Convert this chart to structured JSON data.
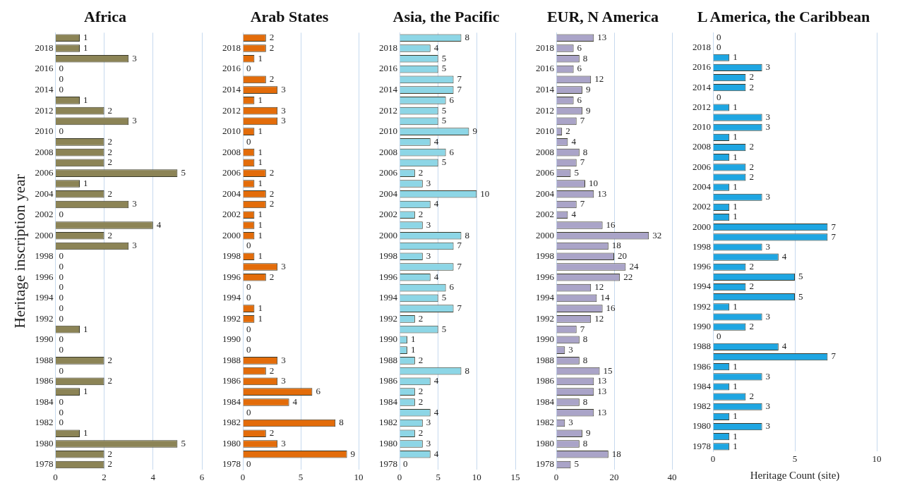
{
  "chart_data": [
    {
      "type": "bar",
      "orientation": "horizontal",
      "title": "Africa",
      "ylabel": "Heritage inscription year",
      "categories": [
        null,
        "2018",
        null,
        "2016",
        null,
        "2014",
        null,
        "2012",
        null,
        "2010",
        null,
        "2008",
        null,
        "2006",
        null,
        "2004",
        null,
        "2002",
        null,
        "2000",
        null,
        "1998",
        null,
        "1996",
        null,
        "1994",
        null,
        "1992",
        null,
        "1990",
        null,
        "1988",
        null,
        "1986",
        null,
        "1984",
        null,
        "1982",
        null,
        "1980",
        null,
        "1978"
      ],
      "values": [
        1,
        1,
        3,
        0,
        0,
        0,
        1,
        2,
        3,
        0,
        2,
        2,
        2,
        5,
        1,
        2,
        3,
        0,
        4,
        2,
        3,
        0,
        0,
        0,
        0,
        0,
        0,
        0,
        1,
        0,
        0,
        2,
        0,
        2,
        1,
        0,
        0,
        0,
        1,
        5,
        2,
        2
      ],
      "color": "#8c8456",
      "xlim": [
        0,
        6
      ],
      "xticks": [
        0,
        2,
        4,
        6
      ],
      "grid": "x",
      "data_labels": true
    },
    {
      "type": "bar",
      "orientation": "horizontal",
      "title": "Arab States",
      "categories": [
        null,
        "2018",
        null,
        "2016",
        null,
        "2014",
        null,
        "2012",
        null,
        "2010",
        null,
        "2008",
        null,
        "2006",
        null,
        "2004",
        null,
        "2002",
        null,
        "2000",
        null,
        "1998",
        null,
        "1996",
        null,
        "1994",
        null,
        "1992",
        null,
        "1990",
        null,
        "1988",
        null,
        "1986",
        null,
        "1984",
        null,
        "1982",
        null,
        "1980",
        null,
        "1978"
      ],
      "values": [
        2,
        2,
        1,
        0,
        2,
        3,
        1,
        3,
        3,
        1,
        0,
        1,
        1,
        2,
        1,
        2,
        2,
        1,
        1,
        1,
        0,
        1,
        3,
        2,
        0,
        0,
        1,
        1,
        0,
        0,
        0,
        3,
        2,
        3,
        6,
        4,
        0,
        8,
        2,
        3,
        9,
        0
      ],
      "color": "#e36c0a",
      "xlim": [
        0,
        10
      ],
      "xticks": [
        0,
        5,
        10
      ],
      "grid": "x",
      "data_labels": true
    },
    {
      "type": "bar",
      "orientation": "horizontal",
      "title": "Asia, the Pacific",
      "categories": [
        null,
        "2018",
        null,
        "2016",
        null,
        "2014",
        null,
        "2012",
        null,
        "2010",
        null,
        "2008",
        null,
        "2006",
        null,
        "2004",
        null,
        "2002",
        null,
        "2000",
        null,
        "1998",
        null,
        "1996",
        null,
        "1994",
        null,
        "1992",
        null,
        "1990",
        null,
        "1988",
        null,
        "1986",
        null,
        "1984",
        null,
        "1982",
        null,
        "1980",
        null,
        "1978"
      ],
      "values": [
        8,
        4,
        5,
        5,
        7,
        7,
        6,
        5,
        5,
        9,
        4,
        6,
        5,
        2,
        3,
        10,
        4,
        2,
        3,
        8,
        7,
        3,
        7,
        4,
        6,
        5,
        7,
        2,
        5,
        1,
        1,
        2,
        8,
        4,
        2,
        2,
        4,
        3,
        2,
        3,
        4,
        0
      ],
      "color": "#8dd6e6",
      "xlim": [
        0,
        15
      ],
      "xticks": [
        0,
        5,
        10,
        15
      ],
      "grid": "x",
      "data_labels": true
    },
    {
      "type": "bar",
      "orientation": "horizontal",
      "title": "EUR, N America",
      "categories": [
        null,
        "2018",
        null,
        "2016",
        null,
        "2014",
        null,
        "2012",
        null,
        "2010",
        null,
        "2008",
        null,
        "2006",
        null,
        "2004",
        null,
        "2002",
        null,
        "2000",
        null,
        "1998",
        null,
        "1996",
        null,
        "1994",
        null,
        "1992",
        null,
        "1990",
        null,
        "1988",
        null,
        "1986",
        null,
        "1984",
        null,
        "1982",
        null,
        "1980",
        null,
        "1978"
      ],
      "values": [
        13,
        6,
        8,
        6,
        12,
        9,
        6,
        9,
        7,
        2,
        4,
        8,
        7,
        5,
        10,
        13,
        7,
        4,
        16,
        32,
        18,
        20,
        24,
        22,
        12,
        14,
        16,
        12,
        7,
        8,
        3,
        8,
        15,
        13,
        13,
        8,
        13,
        3,
        9,
        8,
        18,
        5
      ],
      "color": "#aaa4c8",
      "xlim": [
        0,
        40
      ],
      "xticks": [
        0,
        20,
        40
      ],
      "grid": "x",
      "data_labels": true
    },
    {
      "type": "bar",
      "orientation": "horizontal",
      "title": "L America, the Caribbean",
      "xlabel": "Heritage Count (site)",
      "categories": [
        null,
        "2018",
        null,
        "2016",
        null,
        "2014",
        null,
        "2012",
        null,
        "2010",
        null,
        "2008",
        null,
        "2006",
        null,
        "2004",
        null,
        "2002",
        null,
        "2000",
        null,
        "1998",
        null,
        "1996",
        null,
        "1994",
        null,
        "1992",
        null,
        "1990",
        null,
        "1988",
        null,
        "1986",
        null,
        "1984",
        null,
        "1982",
        null,
        "1980",
        null,
        "1978"
      ],
      "values": [
        0,
        0,
        1,
        3,
        2,
        2,
        0,
        1,
        3,
        3,
        1,
        2,
        1,
        2,
        2,
        1,
        3,
        1,
        1,
        7,
        7,
        3,
        4,
        2,
        5,
        2,
        5,
        1,
        3,
        2,
        0,
        4,
        7,
        1,
        3,
        1,
        2,
        3,
        1,
        3,
        1,
        1
      ],
      "color": "#1ea6e2",
      "xlim": [
        0,
        10
      ],
      "xticks": [
        0,
        5,
        10
      ],
      "grid": "x",
      "data_labels": true
    }
  ]
}
